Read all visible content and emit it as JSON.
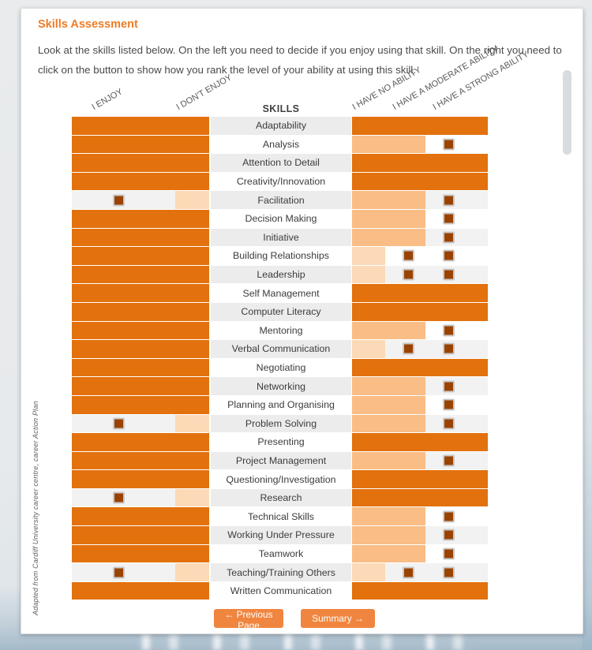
{
  "page": {
    "title": "Skills Assessment",
    "instructions_line1": "Look at the skills listed below. On the left you need to decide if you enjoy using that skill. On the right you need to",
    "instructions_line2": "click on the button to show how you rank the level of your ability at using this skill.",
    "attribution": "Adapted from Cardiff University career centre, career Action Plan"
  },
  "table": {
    "headers": {
      "enjoy": "I ENJOY",
      "dont_enjoy": "I DON'T ENJOY",
      "skills": "SKILLS",
      "no_ability": "I HAVE NO ABILITY",
      "moderate_ability": "I HAVE A MODERATE ABILITY",
      "strong_ability": "I HAVE A STRONG ABILITY"
    },
    "rows": [
      {
        "skill": "Adaptability",
        "enjoy": "enjoy",
        "ability": "strong"
      },
      {
        "skill": "Analysis",
        "enjoy": "enjoy",
        "ability": "moderate"
      },
      {
        "skill": "Attention to Detail",
        "enjoy": "enjoy",
        "ability": "strong"
      },
      {
        "skill": "Creativity/Innovation",
        "enjoy": "enjoy",
        "ability": "strong"
      },
      {
        "skill": "Facilitation",
        "enjoy": "dont_enjoy",
        "ability": "moderate"
      },
      {
        "skill": "Decision Making",
        "enjoy": "enjoy",
        "ability": "moderate"
      },
      {
        "skill": "Initiative",
        "enjoy": "enjoy",
        "ability": "moderate"
      },
      {
        "skill": "Building Relationships",
        "enjoy": "enjoy",
        "ability": "none"
      },
      {
        "skill": "Leadership",
        "enjoy": "enjoy",
        "ability": "none"
      },
      {
        "skill": "Self Management",
        "enjoy": "enjoy",
        "ability": "strong"
      },
      {
        "skill": "Computer Literacy",
        "enjoy": "enjoy",
        "ability": "strong"
      },
      {
        "skill": "Mentoring",
        "enjoy": "enjoy",
        "ability": "moderate"
      },
      {
        "skill": "Verbal Communication",
        "enjoy": "enjoy",
        "ability": "none"
      },
      {
        "skill": "Negotiating",
        "enjoy": "enjoy",
        "ability": "strong"
      },
      {
        "skill": "Networking",
        "enjoy": "enjoy",
        "ability": "moderate"
      },
      {
        "skill": "Planning and Organising",
        "enjoy": "enjoy",
        "ability": "moderate"
      },
      {
        "skill": "Problem Solving",
        "enjoy": "dont_enjoy",
        "ability": "moderate"
      },
      {
        "skill": "Presenting",
        "enjoy": "enjoy",
        "ability": "strong"
      },
      {
        "skill": "Project Management",
        "enjoy": "enjoy",
        "ability": "moderate"
      },
      {
        "skill": "Questioning/Investigation",
        "enjoy": "enjoy",
        "ability": "strong"
      },
      {
        "skill": "Research",
        "enjoy": "dont_enjoy",
        "ability": "strong"
      },
      {
        "skill": "Technical Skills",
        "enjoy": "enjoy",
        "ability": "moderate"
      },
      {
        "skill": "Working Under Pressure",
        "enjoy": "enjoy",
        "ability": "moderate"
      },
      {
        "skill": "Teamwork",
        "enjoy": "enjoy",
        "ability": "moderate"
      },
      {
        "skill": "Teaching/Training Others",
        "enjoy": "dont_enjoy",
        "ability": "none"
      },
      {
        "skill": "Written Communication",
        "enjoy": "enjoy",
        "ability": "strong"
      }
    ]
  },
  "buttons": {
    "previous": "← Previous Page",
    "summary": "Summary →"
  },
  "colors": {
    "accent_orange": "#ee7c26",
    "bar_orange": "#e2710e",
    "peach_medium": "#f9bd85",
    "peach_light": "#fcd9b7",
    "radio_brown": "#9a4301",
    "button_orange": "#f0853f"
  }
}
